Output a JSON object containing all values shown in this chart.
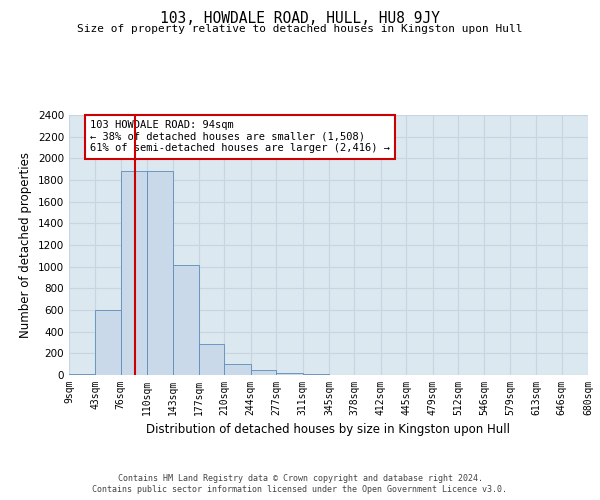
{
  "title": "103, HOWDALE ROAD, HULL, HU8 9JY",
  "subtitle": "Size of property relative to detached houses in Kingston upon Hull",
  "xlabel": "Distribution of detached houses by size in Kingston upon Hull",
  "ylabel": "Number of detached properties",
  "bar_edges": [
    9,
    43,
    76,
    110,
    143,
    177,
    210,
    244,
    277,
    311,
    345,
    378,
    412,
    445,
    479,
    512,
    546,
    579,
    613,
    646,
    680
  ],
  "bar_heights": [
    10,
    600,
    1880,
    1880,
    1020,
    290,
    105,
    50,
    20,
    5,
    2,
    2,
    1,
    1,
    1,
    1,
    0,
    0,
    0,
    0
  ],
  "property_line_x": 94,
  "bar_facecolor": "#c9d9ea",
  "bar_edgecolor": "#5b8db8",
  "vline_color": "#cc0000",
  "annotation_text": "103 HOWDALE ROAD: 94sqm\n← 38% of detached houses are smaller (1,508)\n61% of semi-detached houses are larger (2,416) →",
  "annotation_box_edgecolor": "#cc0000",
  "annotation_box_facecolor": "#ffffff",
  "ylim": [
    0,
    2400
  ],
  "yticks": [
    0,
    200,
    400,
    600,
    800,
    1000,
    1200,
    1400,
    1600,
    1800,
    2000,
    2200,
    2400
  ],
  "grid_color": "#c8d4e0",
  "background_color": "#dce8f0",
  "footer_line1": "Contains HM Land Registry data © Crown copyright and database right 2024.",
  "footer_line2": "Contains public sector information licensed under the Open Government Licence v3.0."
}
